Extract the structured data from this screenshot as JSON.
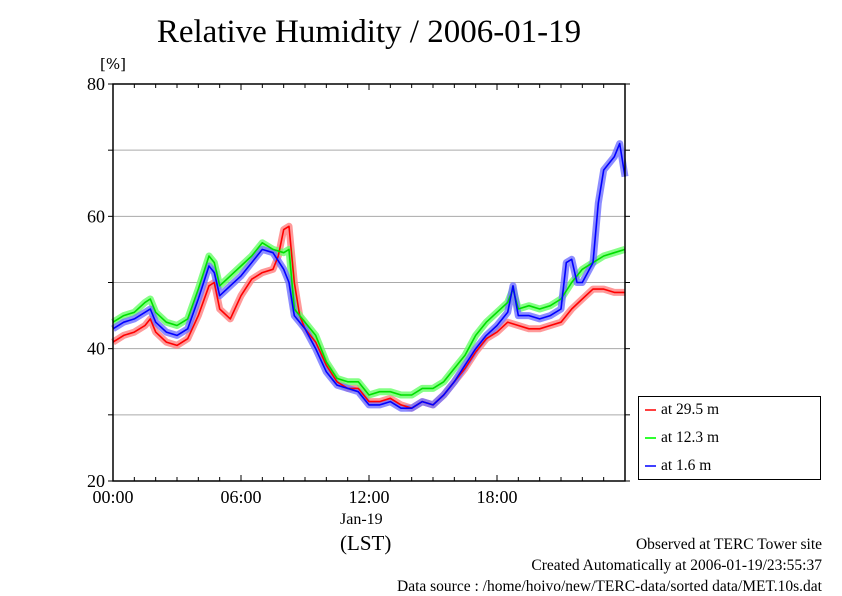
{
  "chart_data": {
    "type": "line",
    "title": "Relative Humidity / 2006-01-19",
    "ylabel": "[%]",
    "xlabel": "(LST)",
    "x_date_label": "Jan-19",
    "ylim": [
      20,
      80
    ],
    "xlim_hours": [
      0,
      24
    ],
    "yticks": [
      "20",
      "40",
      "60",
      "80"
    ],
    "xticks": [
      "00:00",
      "06:00",
      "12:00",
      "18:00"
    ],
    "grid": true,
    "legend_position": "right-bottom outside",
    "series": [
      {
        "name": "at 29.5 m",
        "color": "#ff0000",
        "band": "#ff8080",
        "points": [
          [
            0,
            41
          ],
          [
            0.5,
            42
          ],
          [
            1,
            42.5
          ],
          [
            1.5,
            43.5
          ],
          [
            1.75,
            44.5
          ],
          [
            2,
            42.5
          ],
          [
            2.5,
            41
          ],
          [
            3,
            40.5
          ],
          [
            3.5,
            41.5
          ],
          [
            4,
            45
          ],
          [
            4.5,
            49.5
          ],
          [
            4.75,
            50
          ],
          [
            5,
            46
          ],
          [
            5.5,
            44.5
          ],
          [
            6,
            48
          ],
          [
            6.5,
            50.5
          ],
          [
            7,
            51.5
          ],
          [
            7.5,
            52
          ],
          [
            7.75,
            54
          ],
          [
            8,
            58
          ],
          [
            8.25,
            58.5
          ],
          [
            8.5,
            50
          ],
          [
            8.75,
            45
          ],
          [
            9,
            43
          ],
          [
            9.5,
            41
          ],
          [
            10,
            37.5
          ],
          [
            10.5,
            35
          ],
          [
            11,
            34
          ],
          [
            11.5,
            34
          ],
          [
            12,
            32
          ],
          [
            12.5,
            32
          ],
          [
            13,
            32.5
          ],
          [
            13.5,
            31.5
          ],
          [
            14,
            31
          ],
          [
            14.5,
            32
          ],
          [
            15,
            31.5
          ],
          [
            15.5,
            33
          ],
          [
            16,
            35
          ],
          [
            16.5,
            37
          ],
          [
            17,
            39.5
          ],
          [
            17.5,
            41.5
          ],
          [
            18,
            42.5
          ],
          [
            18.5,
            44
          ],
          [
            19,
            43.5
          ],
          [
            19.5,
            43
          ],
          [
            20,
            43
          ],
          [
            20.5,
            43.5
          ],
          [
            21,
            44
          ],
          [
            21.5,
            46
          ],
          [
            22,
            47.5
          ],
          [
            22.5,
            49
          ],
          [
            23,
            49
          ],
          [
            23.5,
            48.5
          ],
          [
            24,
            48.5
          ]
        ]
      },
      {
        "name": "at 12.3 m",
        "color": "#00dd00",
        "band": "#66ff66",
        "points": [
          [
            0,
            44
          ],
          [
            0.5,
            45
          ],
          [
            1,
            45.5
          ],
          [
            1.5,
            47
          ],
          [
            1.75,
            47.5
          ],
          [
            2,
            45.5
          ],
          [
            2.5,
            44
          ],
          [
            3,
            43.5
          ],
          [
            3.5,
            44.5
          ],
          [
            4,
            49
          ],
          [
            4.5,
            54
          ],
          [
            4.75,
            53
          ],
          [
            5,
            49.5
          ],
          [
            5.5,
            51
          ],
          [
            6,
            52.5
          ],
          [
            6.5,
            54
          ],
          [
            7,
            56
          ],
          [
            7.5,
            55
          ],
          [
            8,
            54.5
          ],
          [
            8.25,
            55
          ],
          [
            8.5,
            46
          ],
          [
            8.75,
            45
          ],
          [
            9,
            44
          ],
          [
            9.5,
            42
          ],
          [
            10,
            38
          ],
          [
            10.5,
            35.5
          ],
          [
            11,
            35
          ],
          [
            11.5,
            35
          ],
          [
            12,
            33
          ],
          [
            12.5,
            33.5
          ],
          [
            13,
            33.5
          ],
          [
            13.5,
            33
          ],
          [
            14,
            33
          ],
          [
            14.5,
            34
          ],
          [
            15,
            34
          ],
          [
            15.5,
            35
          ],
          [
            16,
            37
          ],
          [
            16.5,
            39
          ],
          [
            17,
            42
          ],
          [
            17.5,
            44
          ],
          [
            18,
            45.5
          ],
          [
            18.5,
            47
          ],
          [
            18.75,
            49
          ],
          [
            19,
            46
          ],
          [
            19.5,
            46.5
          ],
          [
            20,
            46
          ],
          [
            20.5,
            46.5
          ],
          [
            21,
            47.5
          ],
          [
            21.5,
            50
          ],
          [
            22,
            52
          ],
          [
            22.5,
            53
          ],
          [
            23,
            54
          ],
          [
            23.5,
            54.5
          ],
          [
            24,
            55
          ]
        ]
      },
      {
        "name": "at 1.6 m",
        "color": "#0000ff",
        "band": "#7070ff",
        "points": [
          [
            0,
            43
          ],
          [
            0.5,
            44
          ],
          [
            1,
            44.5
          ],
          [
            1.5,
            45.5
          ],
          [
            1.75,
            46
          ],
          [
            2,
            44
          ],
          [
            2.5,
            42.5
          ],
          [
            3,
            42
          ],
          [
            3.5,
            43
          ],
          [
            4,
            47.5
          ],
          [
            4.5,
            52.5
          ],
          [
            4.75,
            51.5
          ],
          [
            5,
            48
          ],
          [
            5.5,
            49.5
          ],
          [
            6,
            51
          ],
          [
            6.5,
            53
          ],
          [
            7,
            55
          ],
          [
            7.5,
            54.5
          ],
          [
            8,
            52
          ],
          [
            8.25,
            50
          ],
          [
            8.5,
            45
          ],
          [
            8.75,
            44
          ],
          [
            9,
            43
          ],
          [
            9.5,
            40
          ],
          [
            10,
            36.5
          ],
          [
            10.5,
            34.5
          ],
          [
            11,
            34
          ],
          [
            11.5,
            33.5
          ],
          [
            12,
            31.5
          ],
          [
            12.5,
            31.5
          ],
          [
            13,
            32
          ],
          [
            13.5,
            31
          ],
          [
            14,
            31
          ],
          [
            14.5,
            32
          ],
          [
            15,
            31.5
          ],
          [
            15.5,
            33
          ],
          [
            16,
            35
          ],
          [
            16.5,
            37.5
          ],
          [
            17,
            40
          ],
          [
            17.5,
            42
          ],
          [
            18,
            43.5
          ],
          [
            18.5,
            45.5
          ],
          [
            18.75,
            49.5
          ],
          [
            19,
            45
          ],
          [
            19.5,
            45
          ],
          [
            20,
            44.5
          ],
          [
            20.5,
            45
          ],
          [
            21,
            46
          ],
          [
            21.25,
            53
          ],
          [
            21.5,
            53.5
          ],
          [
            21.75,
            50
          ],
          [
            22,
            50
          ],
          [
            22.5,
            53
          ],
          [
            22.75,
            62
          ],
          [
            23,
            67
          ],
          [
            23.5,
            69
          ],
          [
            23.75,
            71
          ],
          [
            24,
            66
          ]
        ]
      }
    ]
  },
  "footer": {
    "observed": "Observed at TERC Tower site",
    "created": "Created Automatically at 2006-01-19/23:55:37",
    "source": "Data source : /home/hoivo/new/TERC-data/sorted  data/MET.10s.dat"
  }
}
